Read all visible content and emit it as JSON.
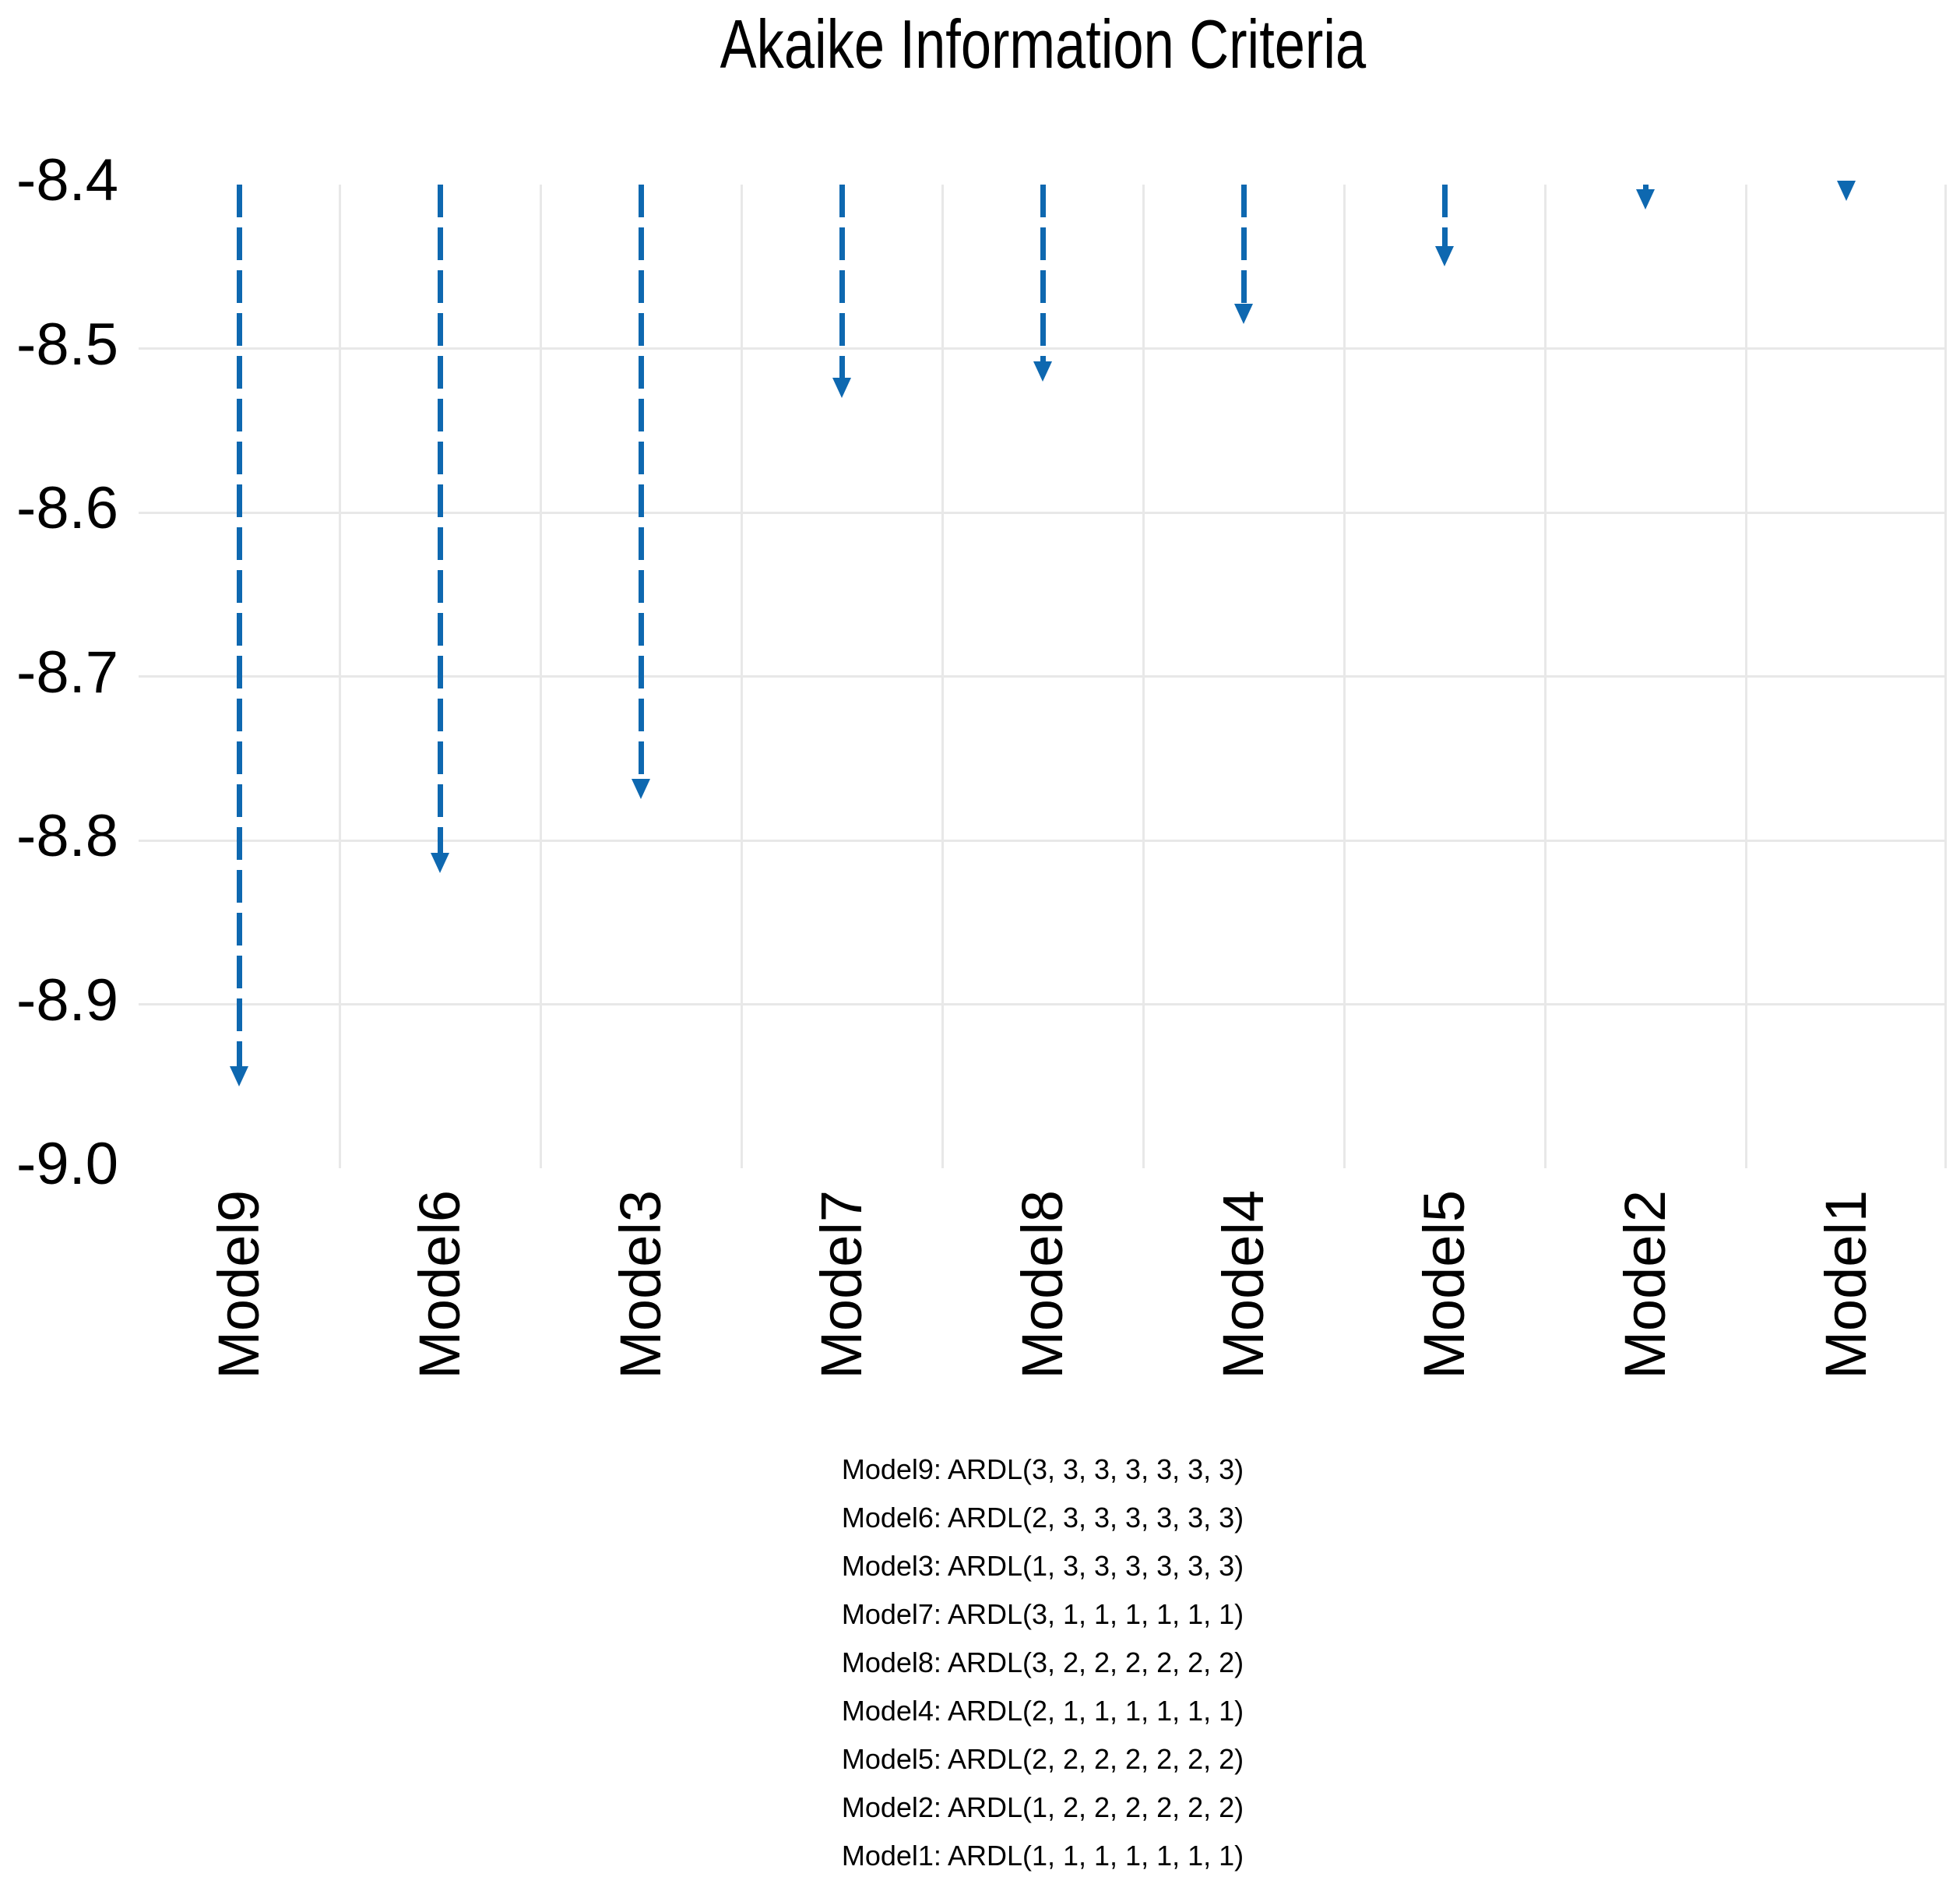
{
  "chart_data": {
    "type": "bar",
    "variant": "dashed-arrow-drop-lines",
    "title": "Akaike Information Criteria",
    "categories": [
      "Model9",
      "Model6",
      "Model3",
      "Model7",
      "Model8",
      "Model4",
      "Model5",
      "Model2",
      "Model1"
    ],
    "values": [
      -8.95,
      -8.82,
      -8.775,
      -8.53,
      -8.52,
      -8.485,
      -8.45,
      -8.415,
      -8.41
    ],
    "arrow_start_value": -8.4,
    "ylim": [
      -9.0,
      -8.4
    ],
    "yticks": [
      {
        "label": "-8.4",
        "value": -8.4
      },
      {
        "label": "-8.5",
        "value": -8.5
      },
      {
        "label": "-8.6",
        "value": -8.6
      },
      {
        "label": "-8.7",
        "value": -8.7
      },
      {
        "label": "-8.8",
        "value": -8.8
      },
      {
        "label": "-8.9",
        "value": -8.9
      },
      {
        "label": "-9.0",
        "value": -9.0
      }
    ],
    "gridlines": {
      "horizontal_values": [
        -8.5,
        -8.6,
        -8.7,
        -8.8,
        -8.9
      ],
      "vertical": "between-categories-and-right-edge"
    },
    "legend_position": "bottom-center",
    "colors": {
      "arrow": "#0E68B0",
      "gridline": "#E8E8E8",
      "text": "#000000",
      "background": "#FFFFFF"
    }
  },
  "legend": {
    "entries": [
      {
        "model": "Model9",
        "spec": "ARDL(3, 3, 3, 3, 3, 3, 3)"
      },
      {
        "model": "Model6",
        "spec": "ARDL(2, 3, 3, 3, 3, 3, 3)"
      },
      {
        "model": "Model3",
        "spec": "ARDL(1, 3, 3, 3, 3, 3, 3)"
      },
      {
        "model": "Model7",
        "spec": "ARDL(3, 1, 1, 1, 1, 1, 1)"
      },
      {
        "model": "Model8",
        "spec": "ARDL(3, 2, 2, 2, 2, 2, 2)"
      },
      {
        "model": "Model4",
        "spec": "ARDL(2, 1, 1, 1, 1, 1, 1)"
      },
      {
        "model": "Model5",
        "spec": "ARDL(2, 2, 2, 2, 2, 2, 2)"
      },
      {
        "model": "Model2",
        "spec": "ARDL(1, 2, 2, 2, 2, 2, 2)"
      },
      {
        "model": "Model1",
        "spec": "ARDL(1, 1, 1, 1, 1, 1, 1)"
      }
    ]
  }
}
